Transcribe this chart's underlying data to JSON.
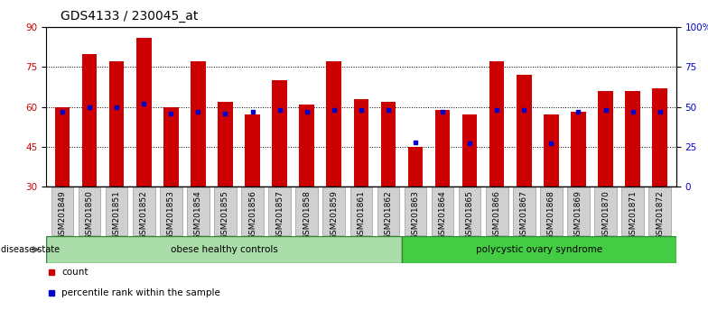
{
  "title": "GDS4133 / 230045_at",
  "samples": [
    "GSM201849",
    "GSM201850",
    "GSM201851",
    "GSM201852",
    "GSM201853",
    "GSM201854",
    "GSM201855",
    "GSM201856",
    "GSM201857",
    "GSM201858",
    "GSM201859",
    "GSM201861",
    "GSM201862",
    "GSM201863",
    "GSM201864",
    "GSM201865",
    "GSM201866",
    "GSM201867",
    "GSM201868",
    "GSM201869",
    "GSM201870",
    "GSM201871",
    "GSM201872"
  ],
  "counts": [
    60,
    80,
    77,
    86,
    60,
    77,
    62,
    57,
    70,
    61,
    77,
    63,
    62,
    45,
    59,
    57,
    77,
    72,
    57,
    58,
    66,
    66,
    67
  ],
  "percentile_ranks": [
    47,
    50,
    50,
    52,
    46,
    47,
    46,
    47,
    48,
    47,
    48,
    48,
    48,
    28,
    47,
    27,
    48,
    48,
    27,
    47,
    48,
    47,
    47
  ],
  "bar_color": "#cc0000",
  "percentile_color": "#0000cc",
  "bar_bottom": 30,
  "ylim_left": [
    30,
    90
  ],
  "ylim_right": [
    0,
    100
  ],
  "yticks_left": [
    30,
    45,
    60,
    75,
    90
  ],
  "yticks_right": [
    0,
    25,
    50,
    75,
    100
  ],
  "ytick_labels_right": [
    "0",
    "25",
    "50",
    "75",
    "100%"
  ],
  "grid_values": [
    45,
    60,
    75
  ],
  "group1_label": "obese healthy controls",
  "group2_label": "polycystic ovary syndrome",
  "group1_count": 13,
  "disease_state_label": "disease state",
  "legend_count_label": "count",
  "legend_percentile_label": "percentile rank within the sample",
  "group1_color": "#aaddaa",
  "group2_color": "#44cc44",
  "bg_color": "#ffffff",
  "tick_label_color_left": "#cc0000",
  "tick_label_color_right": "#0000cc",
  "title_fontsize": 10,
  "tick_fontsize": 6.5,
  "bar_width": 0.55
}
